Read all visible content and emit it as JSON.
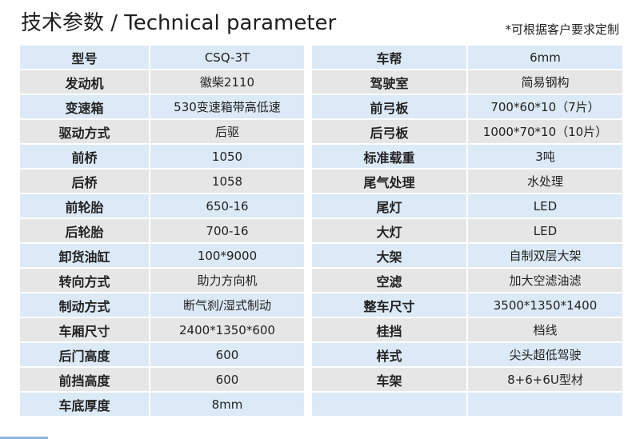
{
  "header": {
    "title": "技术参数 / Technical parameter",
    "note": "*可根据客户要求定制"
  },
  "left_table": [
    {
      "label": "型号",
      "value": "CSQ-3T"
    },
    {
      "label": "发动机",
      "value": "徽柴2110"
    },
    {
      "label": "变速箱",
      "value": "530变速箱带高低速"
    },
    {
      "label": "驱动方式",
      "value": "后驱"
    },
    {
      "label": "前桥",
      "value": "1050"
    },
    {
      "label": "后桥",
      "value": "1058"
    },
    {
      "label": "前轮胎",
      "value": "650-16"
    },
    {
      "label": "后轮胎",
      "value": "700-16"
    },
    {
      "label": "卸货油缸",
      "value": "100*9000"
    },
    {
      "label": "转向方式",
      "value": "助力方向机"
    },
    {
      "label": "制动方式",
      "value": "断气刹/湿式制动"
    },
    {
      "label": "车厢尺寸",
      "value": "2400*1350*600"
    },
    {
      "label": "后门高度",
      "value": "600"
    },
    {
      "label": "前挡高度",
      "value": "600"
    },
    {
      "label": "车底厚度",
      "value": "8mm"
    }
  ],
  "right_table": [
    {
      "label": "车帮",
      "value": "6mm"
    },
    {
      "label": "驾驶室",
      "value": "简易钢构"
    },
    {
      "label": "前弓板",
      "value": "700*60*10（7片）"
    },
    {
      "label": "后弓板",
      "value": "1000*70*10（10片）"
    },
    {
      "label": "标准载重",
      "value": "3吨"
    },
    {
      "label": "尾气处理",
      "value": "水处理"
    },
    {
      "label": "尾灯",
      "value": "LED"
    },
    {
      "label": "大灯",
      "value": "LED"
    },
    {
      "label": "大架",
      "value": "自制双层大架"
    },
    {
      "label": "空滤",
      "value": "加大空滤油滤"
    },
    {
      "label": "整车尺寸",
      "value": "3500*1350*1400"
    },
    {
      "label": "桂挡",
      "value": "档线"
    },
    {
      "label": "样式",
      "value": "尖头超低驾驶"
    },
    {
      "label": "车架",
      "value": "8+6+6U型材"
    },
    {
      "label": "",
      "value": ""
    }
  ]
}
